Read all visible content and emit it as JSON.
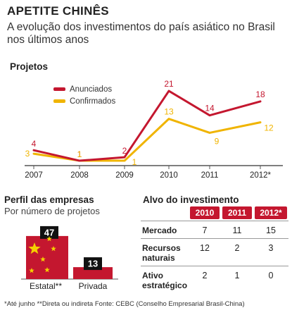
{
  "header": {
    "title": "APETITE CHINÊS",
    "subtitle": "A evolução dos investimentos do país asiático no Brasil nos últimos anos"
  },
  "colors": {
    "anunciados": "#c4172f",
    "confirmados": "#f0b400",
    "axis": "#555555",
    "box": "#111111"
  },
  "chart_data": [
    {
      "type": "line",
      "title": "Projetos",
      "x": [
        "2007",
        "2008",
        "2009",
        "2010",
        "2011",
        "2012*"
      ],
      "ylim": [
        0,
        23
      ],
      "legend_position": "top-left",
      "series": [
        {
          "name": "Anunciados",
          "values": [
            4,
            1,
            2,
            21,
            14,
            18
          ]
        },
        {
          "name": "Confirmados",
          "values": [
            3,
            1,
            1,
            13,
            9,
            12
          ]
        }
      ]
    },
    {
      "type": "bar",
      "title": "Perfil das empresas",
      "subtitle": "Por número de projetos",
      "categories": [
        "Estatal**",
        "Privada"
      ],
      "values": [
        47,
        13
      ]
    },
    {
      "type": "table",
      "title": "Alvo do investimento",
      "columns": [
        "2010",
        "2011",
        "2012*"
      ],
      "rows": [
        {
          "label": "Mercado",
          "values": [
            7,
            11,
            15
          ]
        },
        {
          "label": "Recursos naturais",
          "values": [
            12,
            2,
            3
          ]
        },
        {
          "label": "Ativo estratégico",
          "values": [
            2,
            1,
            0
          ]
        }
      ]
    }
  ],
  "table_labels": {
    "mercado": "Mercado",
    "recursos_1": "Recursos",
    "recursos_2": "naturais",
    "ativo_1": "Ativo",
    "ativo_2": "estratégico"
  },
  "notes": "*Até junho   **Direta ou indireta   Fonte: CEBC (Conselho Empresarial Brasil-China)"
}
